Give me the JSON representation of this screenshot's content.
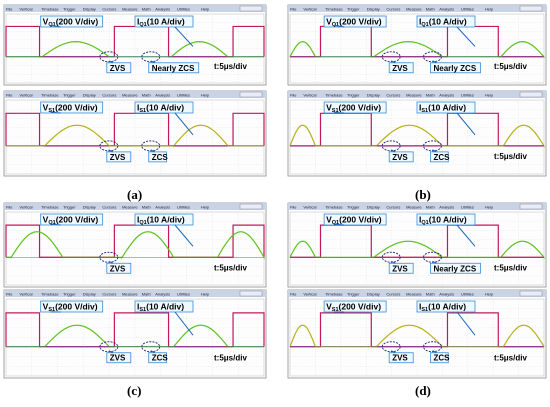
{
  "menu": [
    "File",
    "Vertical",
    "Timebase",
    "Trigger",
    "Display",
    "Cursors",
    "Measure",
    "Math",
    "Analysis",
    "Utilities",
    "Help"
  ],
  "colors": {
    "voltage": "#c2185b",
    "current": "#5cc21d",
    "current_yellow": "#b8b01a",
    "menubar": "#c9d3e6",
    "ref": "#2233aa"
  },
  "panels": [
    {
      "caption": "(a)",
      "top": {
        "v_label": "V",
        "v_sub": "Q1",
        "v_unit": "(200 V/div)",
        "i_label": "I",
        "i_sub": "Q1",
        "i_unit": "(10 A/div)",
        "marker1": "ZVS",
        "marker2": "Nearly ZCS",
        "time": "t:5μs/div"
      },
      "bottom": {
        "v_label": "V",
        "v_sub": "S1",
        "v_unit": "(200 V/div)",
        "i_label": "I",
        "i_sub": "S1",
        "i_unit": "(10 A/div)",
        "marker1": "ZVS",
        "marker2": "ZCS",
        "time": ""
      }
    },
    {
      "caption": "(b)",
      "top": {
        "v_label": "V",
        "v_sub": "Q1",
        "v_unit": "(200 V/div)",
        "i_label": "I",
        "i_sub": "Q1",
        "i_unit": "(10 A/div)",
        "marker1": "ZVS",
        "marker2": "Nearly ZCS",
        "time": "t:5μs/div"
      },
      "bottom": {
        "v_label": "V",
        "v_sub": "S1",
        "v_unit": "(200 V/div)",
        "i_label": "I",
        "i_sub": "S1",
        "i_unit": "(10 A/div)",
        "marker1": "ZVS",
        "marker2": "ZCS",
        "time": "t:5μs/div"
      }
    },
    {
      "caption": "(c)",
      "top": {
        "v_label": "V",
        "v_sub": "Q1",
        "v_unit": "(200 V/div)",
        "i_label": "I",
        "i_sub": "Q1",
        "i_unit": "(10 A/div)",
        "marker1": "ZVS",
        "marker2": "",
        "time": "t:5μs/div"
      },
      "bottom": {
        "v_label": "V",
        "v_sub": "S1",
        "v_unit": "(200 V/div)",
        "i_label": "I",
        "i_sub": "S1",
        "i_unit": "(10 A/div)",
        "marker1": "ZVS",
        "marker2": "ZCS",
        "time": "t:5μs/div"
      }
    },
    {
      "caption": "(d)",
      "top": {
        "v_label": "V",
        "v_sub": "Q1",
        "v_unit": "(200 V/div)",
        "i_label": "I",
        "i_sub": "Q1",
        "i_unit": "(10 A/div)",
        "marker1": "ZVS",
        "marker2": "Nearly ZCS",
        "time": "t:5μs/div"
      },
      "bottom": {
        "v_label": "V",
        "v_sub": "S1",
        "v_unit": "(200 V/div)",
        "i_label": "I",
        "i_sub": "S1",
        "i_unit": "(10 A/div)",
        "marker1": "ZVS",
        "marker2": "ZCS",
        "time": "t:5μs/div"
      }
    }
  ],
  "chart_data": {
    "type": "line",
    "series": [
      {
        "name": "V_Q1",
        "description": "square-wave drain-source voltage, pink"
      },
      {
        "name": "I_Q1",
        "description": "resonant current, green/yellow"
      }
    ]
  }
}
